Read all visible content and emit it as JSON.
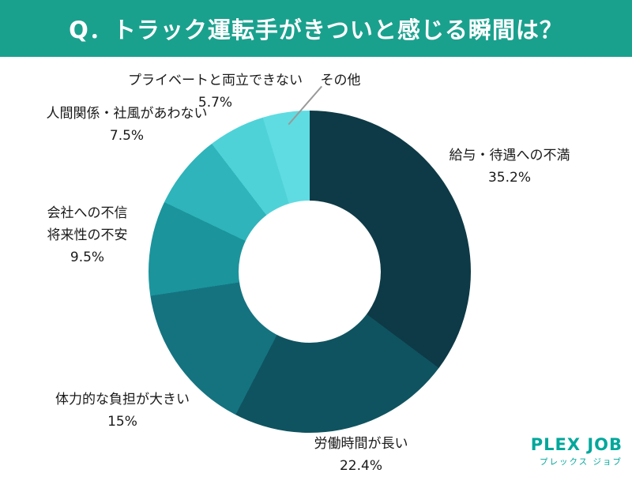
{
  "header": {
    "title": "Q．トラック運転手がきついと感じる瞬間は？",
    "bg_color": "#1aa18e"
  },
  "chart_data": {
    "type": "pie",
    "donut": true,
    "title": "Q．トラック運転手がきついと感じる瞬間は？",
    "start_angle_deg": 0,
    "direction": "clockwise",
    "legend_position": "none",
    "categories": [
      "給与・待遇への不満",
      "労働時間が長い",
      "体力的な負担が大きい",
      "会社への不信・将来性の不安",
      "人間関係・社風があわない",
      "プライベートと両立できない",
      "その他"
    ],
    "values": [
      35.2,
      22.4,
      15,
      9.5,
      7.5,
      5.7,
      4.7
    ],
    "colors": [
      "#0d3a46",
      "#0f5360",
      "#157380",
      "#1b949c",
      "#2eb4ba",
      "#4ed2d8",
      "#5fdce1"
    ],
    "labels": [
      "給与・待遇への不満\n35.2%",
      "労働時間が長い\n22.4%",
      "体力的な負担が大きい\n15%",
      "会社への不信\n将来性の不安\n9.5%",
      "人間関係・社風があわない\n7.5%",
      "プライベートと両立できない\n5.7%",
      "その他"
    ]
  },
  "logo": {
    "name": "PLEX JOB",
    "subtitle": "プレックス ジョブ",
    "color": "#00a79b"
  }
}
